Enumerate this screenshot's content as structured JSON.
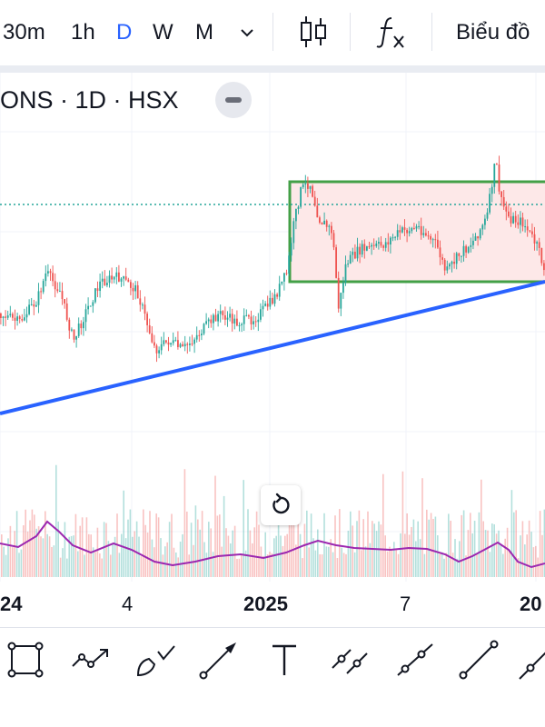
{
  "toolbar": {
    "intervals": [
      {
        "label": "30m",
        "active": false
      },
      {
        "label": "1h",
        "active": false
      },
      {
        "label": "D",
        "active": true
      },
      {
        "label": "W",
        "active": false
      },
      {
        "label": "M",
        "active": false
      }
    ],
    "interval_dropdown_icon": "chevron-down-icon",
    "chart_type_icon": "candles-icon",
    "indicators_icon": "fx-icon",
    "chart_menu_label": "Biểu đồ",
    "accent_color": "#2962ff"
  },
  "legend": {
    "symbol_text": "ONS · 1D · HSX"
  },
  "chart_data": {
    "type": "candlestick",
    "title": "",
    "xlabel": "",
    "ylabel": "",
    "x_tick_labels": [
      "24",
      "4",
      "2025",
      "7",
      "20"
    ],
    "grid": true,
    "colors": {
      "up": "#26a69a",
      "down": "#ef5350",
      "trendline": "#2962ff",
      "rectangle_border": "#43a047",
      "rectangle_fill": "#fde8e8",
      "volume_ma": "#9c27b0"
    },
    "drawings": [
      {
        "type": "trendline",
        "description": "ascending support line"
      },
      {
        "type": "rectangle",
        "description": "sideways range box"
      },
      {
        "type": "horizontal-dotted-line",
        "description": "current price level"
      }
    ],
    "series": [
      {
        "type": "price-candles"
      },
      {
        "type": "volume-bars"
      },
      {
        "type": "volume-moving-average"
      }
    ]
  },
  "drawing_tools": [
    "rectangle-tool-icon",
    "path-tool-icon",
    "brush-tool-icon",
    "arrow-tool-icon",
    "text-tool-icon",
    "parallel-line-tool-icon",
    "ray-tool-icon",
    "trend-line-tool-icon",
    "extended-line-tool-icon"
  ]
}
